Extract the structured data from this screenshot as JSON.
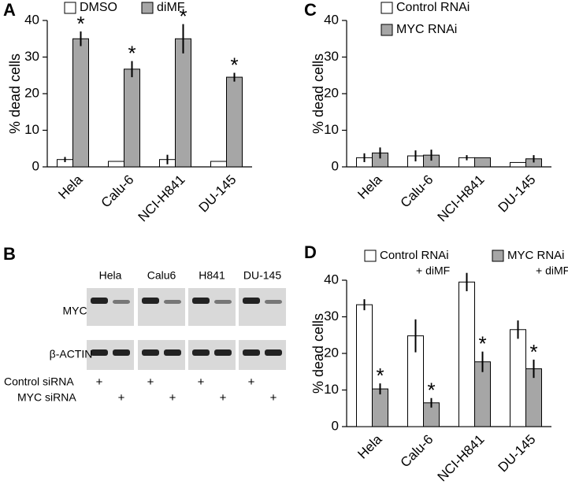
{
  "chart_data": [
    {
      "type": "bar",
      "panel": "A",
      "y_label": "% dead cells",
      "categories": [
        "Hela",
        "Calu-6",
        "NCI-H841",
        "DU-145"
      ],
      "ylim": [
        0,
        40
      ],
      "yticks": [
        0,
        10,
        20,
        30,
        40
      ],
      "series": [
        {
          "name": "DMSO",
          "color": "#ffffff",
          "values": [
            2,
            1.5,
            2,
            1.5
          ],
          "errors": [
            0.7,
            0,
            1.3,
            0
          ]
        },
        {
          "name": "diMF",
          "color": "#a6a6a6",
          "values": [
            35,
            26.7,
            35,
            24.5
          ],
          "errors": [
            2,
            2.2,
            4,
            1.2
          ],
          "annotations": [
            "*",
            "*",
            "*",
            "*"
          ]
        }
      ]
    },
    {
      "type": "bar",
      "panel": "C",
      "y_label": "% dead cells",
      "categories": [
        "Hela",
        "Calu-6",
        "NCI-H841",
        "DU-145"
      ],
      "ylim": [
        0,
        40
      ],
      "yticks": [
        0,
        10,
        20,
        30,
        40
      ],
      "series": [
        {
          "name": "Control RNAi",
          "color": "#ffffff",
          "values": [
            2.5,
            3,
            2.5,
            1.2
          ],
          "errors": [
            1.2,
            1.5,
            0.7,
            0
          ]
        },
        {
          "name": "MYC RNAi",
          "color": "#a6a6a6",
          "values": [
            3.8,
            3.2,
            2.5,
            2.2
          ],
          "errors": [
            1.5,
            1.5,
            0,
            1
          ]
        }
      ]
    },
    {
      "type": "bar",
      "panel": "D",
      "y_label": "% dead cells",
      "categories": [
        "Hela",
        "Calu-6",
        "NCI-H841",
        "DU-145"
      ],
      "ylim": [
        0,
        40
      ],
      "yticks": [
        0,
        10,
        20,
        30,
        40
      ],
      "series": [
        {
          "name": [
            "Control RNAi",
            "+ diMF"
          ],
          "color": "#ffffff",
          "values": [
            33.3,
            24.8,
            39.5,
            26.5
          ],
          "errors": [
            1.5,
            4.5,
            2.5,
            2.5
          ]
        },
        {
          "name": [
            "MYC RNAi",
            "+ diMF"
          ],
          "color": "#a6a6a6",
          "values": [
            10.3,
            6.5,
            17.7,
            15.8
          ],
          "errors": [
            1.5,
            1.3,
            2.8,
            2.5
          ],
          "annotations": [
            "*",
            "*",
            "*",
            "*"
          ]
        }
      ]
    }
  ],
  "blot": {
    "panel": "B",
    "lanes": [
      "Hela",
      "Calu6",
      "H841",
      "DU-145"
    ],
    "proteins": [
      "MYC",
      "β-ACTIN"
    ],
    "conditions": [
      {
        "label": "Control siRNA",
        "marks": [
          "+",
          "+",
          "+",
          "+"
        ]
      },
      {
        "label": "MYC siRNA",
        "marks": [
          "+",
          "+",
          "+",
          "+"
        ]
      }
    ]
  }
}
